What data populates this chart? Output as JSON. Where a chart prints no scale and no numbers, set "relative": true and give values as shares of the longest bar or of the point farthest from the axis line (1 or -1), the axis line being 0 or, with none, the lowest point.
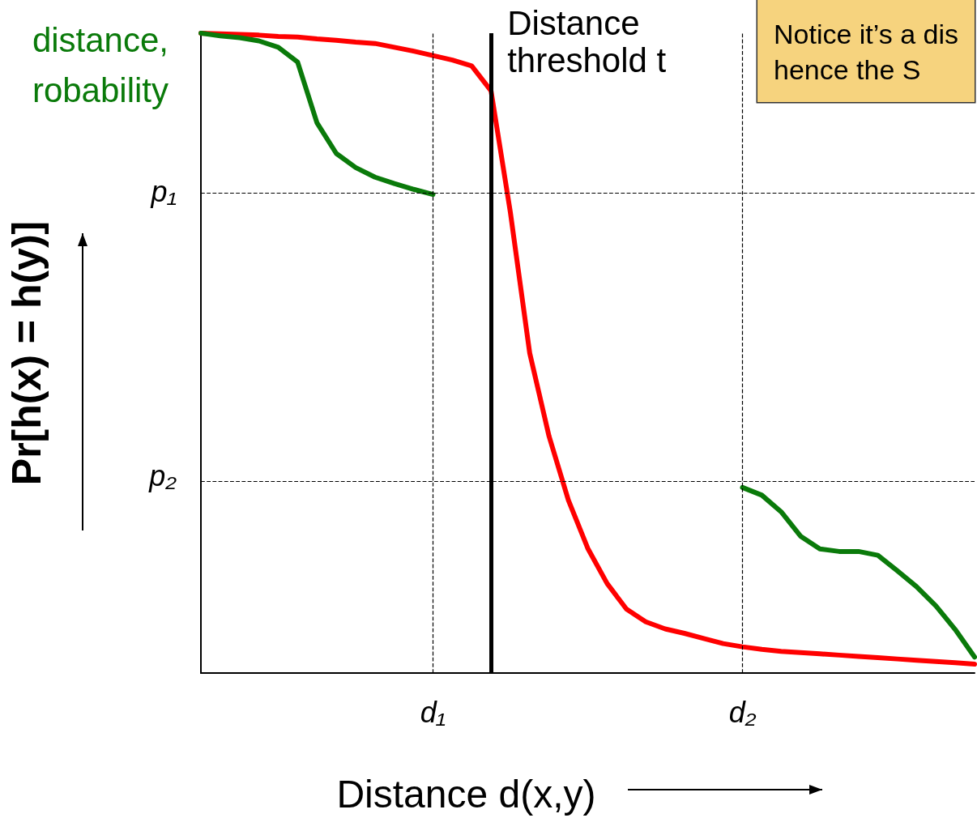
{
  "chart_data": {
    "type": "line",
    "relative": true,
    "xlabel": "Distance d(x,y)",
    "ylabel": "Pr[h(x) = h(y)]",
    "tick_labels": "x",
    "marker": "none",
    "line_style": "solid",
    "categories": [
      null,
      null,
      null,
      null,
      null,
      null,
      null,
      null,
      null,
      null,
      null,
      null,
      "d₁",
      null,
      null,
      null,
      null,
      null,
      null,
      null,
      null,
      null,
      null,
      null,
      null,
      null,
      null,
      null,
      "d₂",
      null,
      null,
      null,
      null,
      null,
      null,
      null,
      null,
      null,
      null,
      null,
      null
    ],
    "series": [
      {
        "color": "#ff0000",
        "values": [
          1.0,
          0.999,
          0.998,
          0.997,
          0.995,
          0.994,
          0.991,
          0.989,
          0.986,
          0.984,
          0.978,
          0.972,
          0.965,
          0.958,
          0.949,
          0.91,
          0.72,
          0.5,
          0.37,
          0.27,
          0.195,
          0.14,
          0.1,
          0.08,
          0.069,
          0.062,
          0.054,
          0.046,
          0.041,
          0.037,
          0.034,
          0.032,
          0.03,
          0.028,
          0.026,
          0.024,
          0.022,
          0.02,
          0.018,
          0.016,
          0.014
        ]
      },
      {
        "color": "#0a7a0a",
        "values": [
          1.0,
          0.996,
          0.993,
          0.988,
          0.978,
          0.955,
          0.86,
          0.812,
          0.79,
          0.775,
          0.765,
          0.756,
          0.748,
          null,
          null,
          null,
          null,
          null,
          null,
          null,
          null,
          null,
          null,
          null,
          null,
          null,
          null,
          null,
          null,
          null,
          null,
          null,
          null,
          null,
          null,
          null,
          null,
          null,
          null,
          null,
          null
        ]
      },
      {
        "color": "#0a7a0a",
        "values": [
          null,
          null,
          null,
          null,
          null,
          null,
          null,
          null,
          null,
          null,
          null,
          null,
          null,
          null,
          null,
          null,
          null,
          null,
          null,
          null,
          null,
          null,
          null,
          null,
          null,
          null,
          null,
          null,
          0.29,
          0.278,
          0.252,
          0.214,
          0.194,
          0.19,
          0.19,
          0.184,
          0.16,
          0.135,
          0.105,
          0.068,
          0.025
        ]
      }
    ],
    "ref_lines": [
      {
        "axis": "x",
        "value": "d₁",
        "line_style": "dashed",
        "color": "#000000"
      },
      {
        "axis": "x",
        "value": "d₂",
        "line_style": "dashed",
        "color": "#000000"
      },
      {
        "axis": "y",
        "value": 0.748,
        "label": "p₁",
        "line_style": "dashed",
        "color": "#000000"
      },
      {
        "axis": "y",
        "value": 0.303,
        "label": "p₂",
        "line_style": "dashed",
        "color": "#000000"
      }
    ],
    "annotations": [
      "distance,\nrobability",
      "Notice it’s a dis\nhence the S",
      "Distance threshold t"
    ]
  }
}
